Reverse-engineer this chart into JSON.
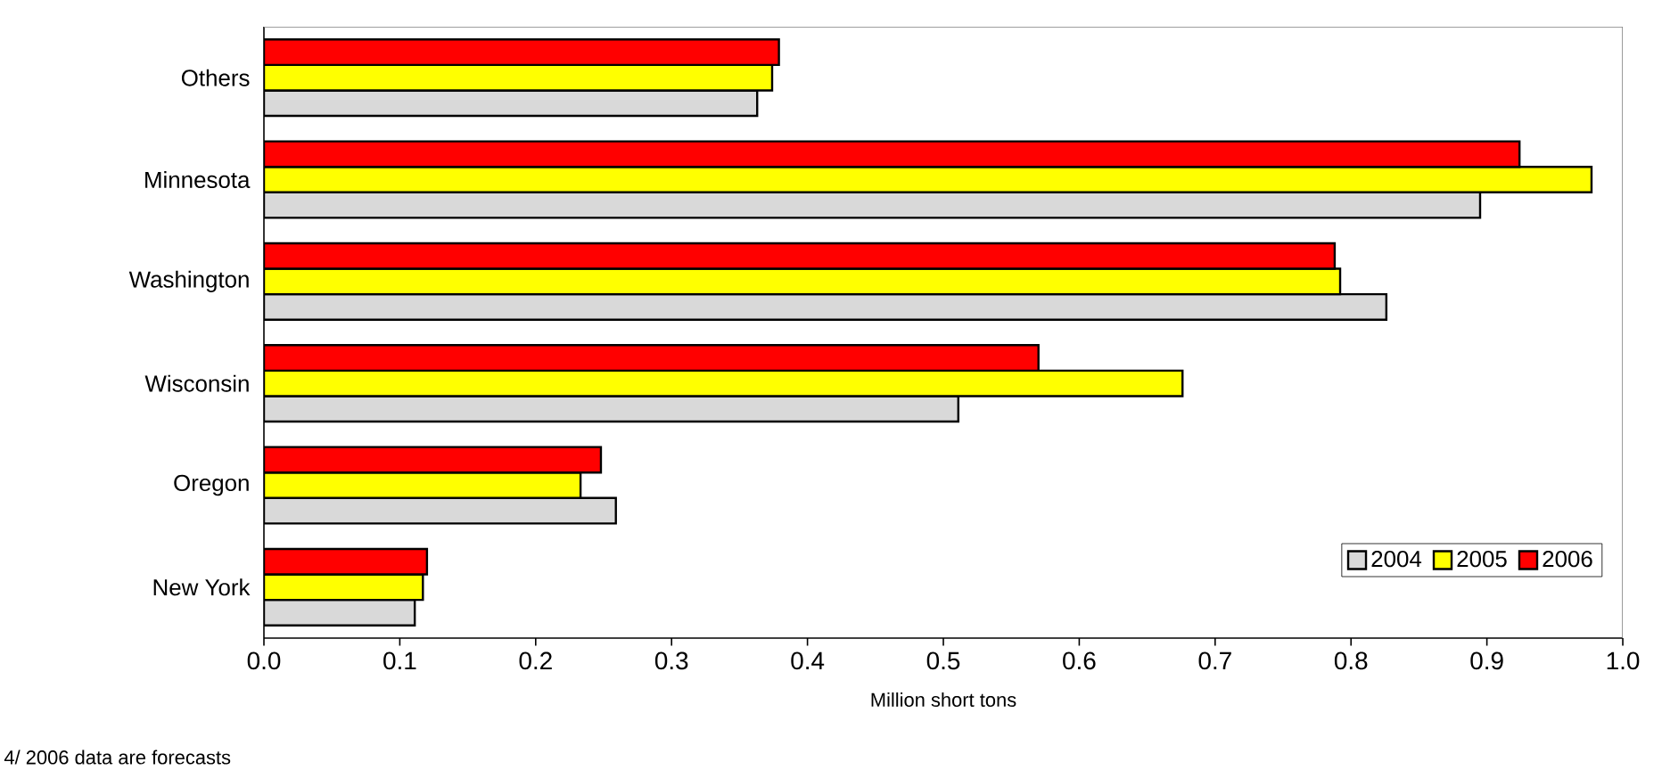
{
  "chart_data": {
    "type": "bar",
    "orientation": "horizontal",
    "categories": [
      "Others",
      "Minnesota",
      "Washington",
      "Wisconsin",
      "Oregon",
      "New York"
    ],
    "series": [
      {
        "name": "2004",
        "color": "#d9d9d9",
        "values": [
          0.363,
          0.895,
          0.826,
          0.511,
          0.259,
          0.111
        ]
      },
      {
        "name": "2005",
        "color": "#ffff00",
        "values": [
          0.374,
          0.977,
          0.792,
          0.676,
          0.233,
          0.117
        ]
      },
      {
        "name": "2006",
        "color": "#ff0000",
        "values": [
          0.379,
          0.924,
          0.788,
          0.57,
          0.248,
          0.12
        ]
      }
    ],
    "xlim": [
      0,
      1.0
    ],
    "xticks": [
      {
        "value": 0,
        "label": "0.0"
      },
      0.1,
      0.2,
      0.3,
      0.4,
      0.5,
      0.6,
      0.7,
      0.8,
      0.9,
      {
        "value": 1.0,
        "label": "1.0"
      }
    ],
    "xlabel": "Million short tons",
    "legend": "bottom right",
    "grid": false,
    "annotations": [
      "4/ 2006 data are forecasts"
    ]
  }
}
